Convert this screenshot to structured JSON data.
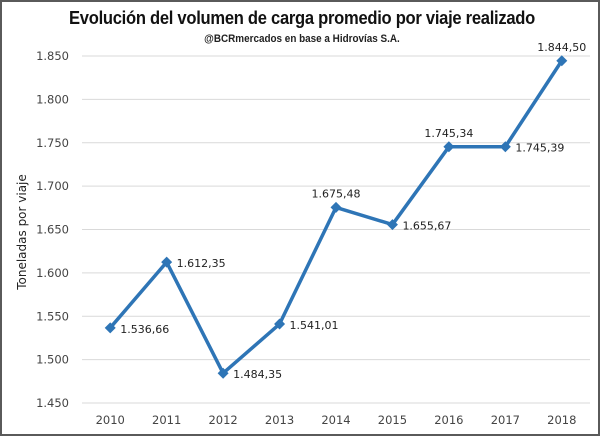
{
  "chart_data": {
    "type": "line",
    "title": "Evolución del volumen de carga promedio por viaje realizado",
    "subtitle": "@BCRmercados en base a Hidrovías S.A.",
    "xlabel": "",
    "ylabel": "Toneladas por viaje",
    "categories": [
      "2010",
      "2011",
      "2012",
      "2013",
      "2014",
      "2015",
      "2016",
      "2017",
      "2018"
    ],
    "series": [
      {
        "name": "Toneladas por viaje",
        "color": "#2e75b6",
        "values": [
          1536.66,
          1612.35,
          1484.35,
          1541.01,
          1675.48,
          1655.67,
          1745.34,
          1745.39,
          1844.5
        ],
        "labels": [
          "1.536,66",
          "1.612,35",
          "1.484,35",
          "1.541,01",
          "1.675,48",
          "1.655,67",
          "1.745,34",
          "1.745,39",
          "1.844,50"
        ],
        "label_positions": [
          "right",
          "right",
          "right",
          "right",
          "above",
          "right",
          "above",
          "right",
          "above"
        ]
      }
    ],
    "ylim": [
      1450,
      1850
    ],
    "yticks": [
      1450,
      1500,
      1550,
      1600,
      1650,
      1700,
      1750,
      1800,
      1850
    ],
    "ytick_labels": [
      "1.450",
      "1.500",
      "1.550",
      "1.600",
      "1.650",
      "1.700",
      "1.750",
      "1.800",
      "1.850"
    ],
    "grid": true,
    "legend": "none",
    "marker": "diamond"
  }
}
